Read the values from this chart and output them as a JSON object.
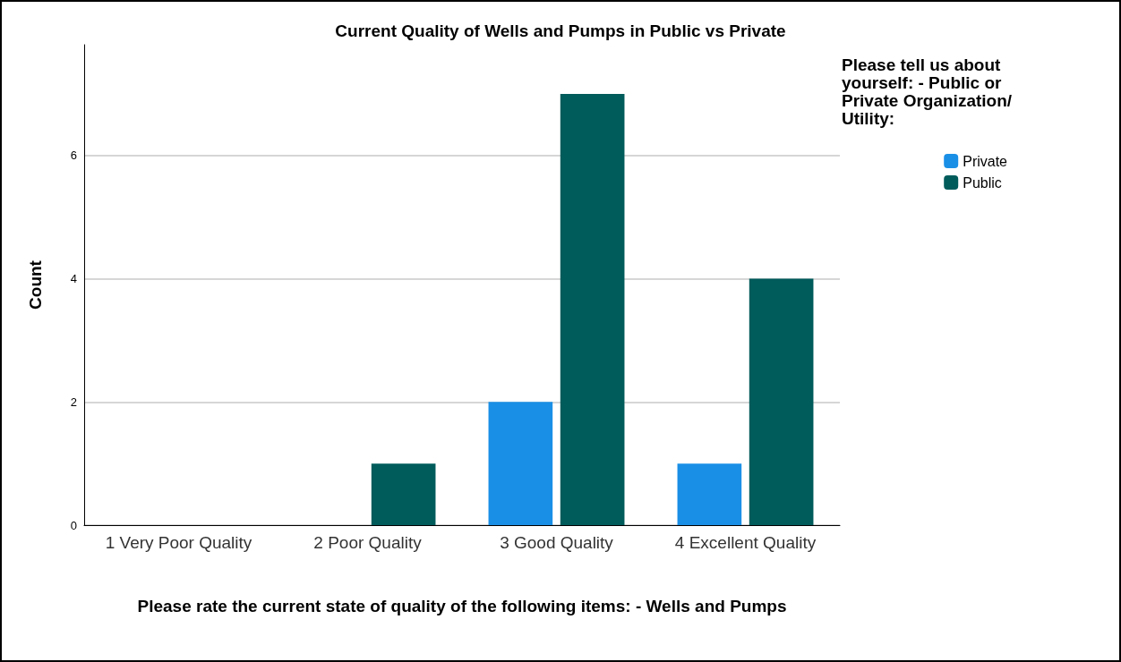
{
  "chart_data": {
    "type": "bar",
    "title": "Current Quality of Wells and Pumps in Public vs Private",
    "xlabel": "Please rate the current state of quality of the following items: - Wells and Pumps",
    "ylabel": "Count",
    "legend_title": "Please tell us about yourself: - Public or Private Organization/Utility:",
    "categories": [
      "1 Very Poor Quality",
      "2 Poor Quality",
      "3 Good Quality",
      "4 Excellent Quality"
    ],
    "series": [
      {
        "name": "Private",
        "color": "#1a8fe6",
        "values": [
          0,
          0,
          2,
          1
        ]
      },
      {
        "name": "Public",
        "color": "#005b5b",
        "values": [
          0,
          1,
          7,
          4
        ]
      }
    ],
    "ylim": [
      0,
      7.8
    ],
    "yticks": [
      0,
      2,
      4,
      6
    ],
    "grid": "y",
    "legend": "top right"
  }
}
